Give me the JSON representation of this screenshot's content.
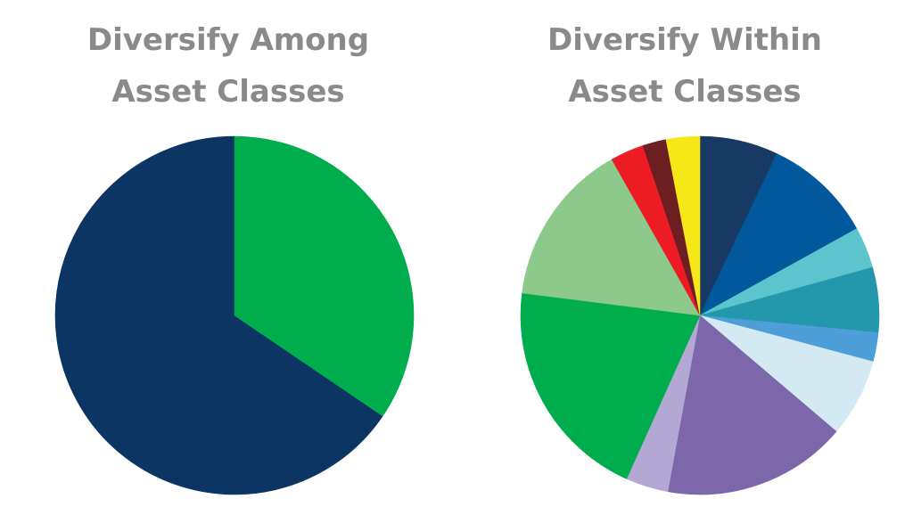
{
  "chart_data": [
    {
      "type": "pie",
      "title_lines": [
        "Diversify Among",
        "Asset Classes"
      ],
      "slices": [
        {
          "value": 65.5,
          "color": "#0d3563"
        },
        {
          "value": 34.5,
          "color": "#00ad4d"
        }
      ]
    },
    {
      "type": "pie",
      "title_lines": [
        "Diversify Within",
        "Asset Classes"
      ],
      "slices": [
        {
          "value": 7.0,
          "color": "#183963"
        },
        {
          "value": 9.8,
          "color": "#02589c"
        },
        {
          "value": 3.7,
          "color": "#5bc4cd"
        },
        {
          "value": 5.8,
          "color": "#2397ab"
        },
        {
          "value": 2.6,
          "color": "#4d9ed9"
        },
        {
          "value": 7.0,
          "color": "#d4eaf2"
        },
        {
          "value": 16.5,
          "color": "#7d67ab"
        },
        {
          "value": 3.8,
          "color": "#b3a8d3"
        },
        {
          "value": 20.1,
          "color": "#00ad4d"
        },
        {
          "value": 14.7,
          "color": "#8cc98b"
        },
        {
          "value": 3.0,
          "color": "#ed1c24"
        },
        {
          "value": 2.1,
          "color": "#6d1e21"
        },
        {
          "value": 3.0,
          "color": "#f6e816"
        }
      ]
    }
  ]
}
